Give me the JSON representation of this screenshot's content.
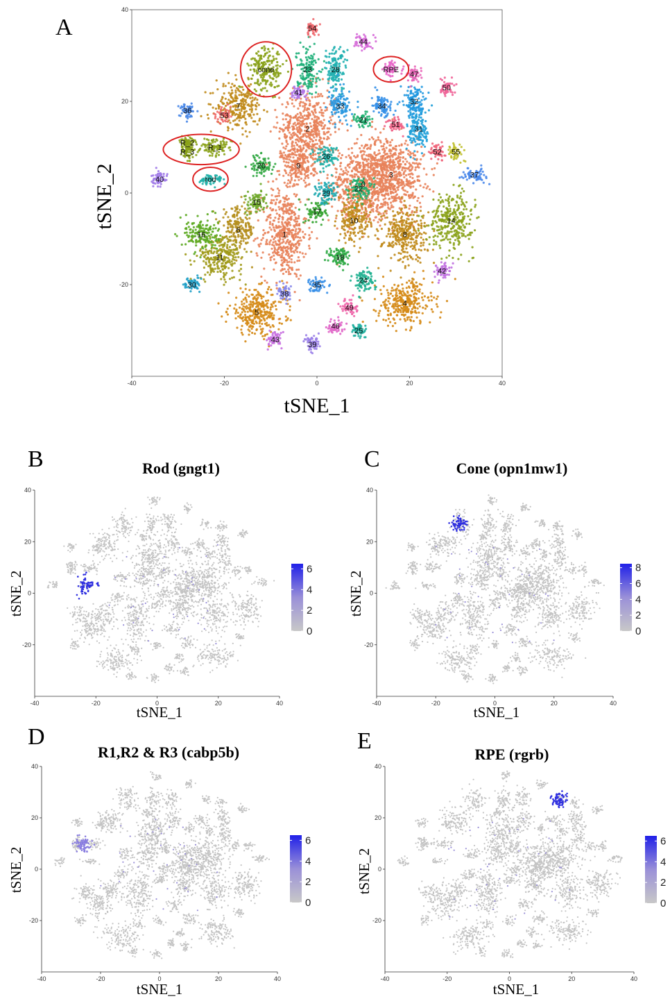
{
  "chart_data": [
    {
      "panel": "A",
      "type": "scatter",
      "title": "",
      "xlabel": "tSNE_1",
      "ylabel": "tSNE_2",
      "xlim": [
        -40,
        40
      ],
      "ylim": [
        -40,
        40
      ],
      "x_ticks": [
        "-40",
        "-20",
        "0",
        "20",
        "40"
      ],
      "y_ticks": [
        "40",
        "20",
        "0",
        "-20"
      ],
      "grid": false,
      "clusters": [
        {
          "name": "0",
          "x": 10,
          "y": 2,
          "color": "#e8825a"
        },
        {
          "name": "1",
          "x": -7,
          "y": -9,
          "color": "#e8825a"
        },
        {
          "name": "2",
          "x": -2,
          "y": 14,
          "color": "#e8825a"
        },
        {
          "name": "3",
          "x": 16,
          "y": 4,
          "color": "#e8825a"
        },
        {
          "name": "4",
          "x": 19,
          "y": -24,
          "color": "#d58a16"
        },
        {
          "name": "5",
          "x": -13,
          "y": -26,
          "color": "#d58a16"
        },
        {
          "name": "6",
          "x": -17,
          "y": -8,
          "color": "#b58f1e"
        },
        {
          "name": "7",
          "x": -17,
          "y": 19,
          "color": "#c08a1a"
        },
        {
          "name": "8",
          "x": 19,
          "y": -9,
          "color": "#c08a1a"
        },
        {
          "name": "9",
          "x": -4,
          "y": 6,
          "color": "#e8825a"
        },
        {
          "name": "10",
          "x": 8,
          "y": -6,
          "color": "#c08a1a"
        },
        {
          "name": "11",
          "x": -21,
          "y": -14,
          "color": "#a09a1a"
        },
        {
          "name": "14",
          "x": 29,
          "y": -6,
          "color": "#8aa21a"
        },
        {
          "name": "15",
          "x": -13,
          "y": -2,
          "color": "#6fa82a"
        },
        {
          "name": "16",
          "x": -25,
          "y": -9,
          "color": "#5daa22"
        },
        {
          "name": "17",
          "x": 0,
          "y": -4,
          "color": "#3aa535"
        },
        {
          "name": "18",
          "x": 5,
          "y": -14,
          "color": "#2faa45"
        },
        {
          "name": "20",
          "x": -12,
          "y": 6,
          "color": "#33a845"
        },
        {
          "name": "21",
          "x": 10,
          "y": 16,
          "color": "#1fb070"
        },
        {
          "name": "22",
          "x": 9,
          "y": 1,
          "color": "#1fb070"
        },
        {
          "name": "23",
          "x": -2,
          "y": 27,
          "color": "#20b07a"
        },
        {
          "name": "24",
          "x": 10,
          "y": -19,
          "color": "#1fb090"
        },
        {
          "name": "25",
          "x": 9,
          "y": -30,
          "color": "#20b0a0"
        },
        {
          "name": "26",
          "x": 2,
          "y": 8,
          "color": "#20b0a8"
        },
        {
          "name": "28",
          "x": 4,
          "y": 27,
          "color": "#20b0b0"
        },
        {
          "name": "29",
          "x": 2,
          "y": 0,
          "color": "#20aab0"
        },
        {
          "name": "30",
          "x": -27,
          "y": -20,
          "color": "#20a0c8"
        },
        {
          "name": "31",
          "x": 22,
          "y": 14,
          "color": "#20a0d8"
        },
        {
          "name": "32",
          "x": 21,
          "y": 20,
          "color": "#2098e0"
        },
        {
          "name": "33",
          "x": 5,
          "y": 19,
          "color": "#2a98e0"
        },
        {
          "name": "34",
          "x": 14,
          "y": 19,
          "color": "#3590e8"
        },
        {
          "name": "35",
          "x": 0,
          "y": -20,
          "color": "#3a90e8"
        },
        {
          "name": "36",
          "x": -28,
          "y": 18,
          "color": "#4a88e8"
        },
        {
          "name": "37",
          "x": 34,
          "y": 4,
          "color": "#4a88ea"
        },
        {
          "name": "38",
          "x": -7,
          "y": -22,
          "color": "#8a8aea"
        },
        {
          "name": "39",
          "x": -1,
          "y": -33,
          "color": "#9a80e8"
        },
        {
          "name": "40",
          "x": -34,
          "y": 3,
          "color": "#a07ae8"
        },
        {
          "name": "41",
          "x": -4,
          "y": 22,
          "color": "#b078e8"
        },
        {
          "name": "42",
          "x": 27,
          "y": -17,
          "color": "#c070e0"
        },
        {
          "name": "43",
          "x": -9,
          "y": -32,
          "color": "#c870e0"
        },
        {
          "name": "44",
          "x": 10,
          "y": 33,
          "color": "#d66ad8"
        },
        {
          "name": "46",
          "x": 4,
          "y": -29,
          "color": "#e066c8"
        },
        {
          "name": "47",
          "x": 21,
          "y": 26,
          "color": "#e866b8"
        },
        {
          "name": "49",
          "x": 7,
          "y": -25,
          "color": "#ee64a8"
        },
        {
          "name": "50",
          "x": 28,
          "y": 23,
          "color": "#f06498"
        },
        {
          "name": "51",
          "x": 17,
          "y": 15,
          "color": "#f06488"
        },
        {
          "name": "52",
          "x": 26,
          "y": 9,
          "color": "#f0647a"
        },
        {
          "name": "53",
          "x": -20,
          "y": 17,
          "color": "#f06a6a"
        },
        {
          "name": "54",
          "x": -1,
          "y": 36,
          "color": "#f06a70"
        },
        {
          "name": "55",
          "x": 30,
          "y": 9,
          "color": "#c0c030"
        },
        {
          "name": "cone",
          "x": -11,
          "y": 27,
          "color": "#8aa21a"
        },
        {
          "name": "RPE",
          "x": 16,
          "y": 27,
          "color": "#e866c8"
        },
        {
          "name": "R_1",
          "x": -22,
          "y": 10,
          "color": "#8aa21a"
        },
        {
          "name": "R_2",
          "x": -28,
          "y": 11,
          "color": "#8aa21a"
        },
        {
          "name": "R_3",
          "x": -28,
          "y": 9,
          "color": "#8aa21a"
        },
        {
          "name": "rod",
          "x": -23,
          "y": 3,
          "color": "#20b0a8"
        }
      ],
      "highlighted_circles": [
        "cone",
        "RPE",
        "R_1/R_2/R_3",
        "rod"
      ]
    },
    {
      "panel": "B",
      "type": "scatter",
      "title": "Rod (gngt1)",
      "xlabel": "tSNE_1",
      "ylabel": "tSNE_2",
      "xlim": [
        -40,
        40
      ],
      "ylim": [
        -40,
        40
      ],
      "x_ticks": [
        "-40",
        "-20",
        "0",
        "20",
        "40"
      ],
      "y_ticks": [
        "40",
        "20",
        "0",
        "-20"
      ],
      "legend_ticks": [
        "6",
        "4",
        "2",
        "0"
      ],
      "legend_min": 0,
      "legend_max": 6.5,
      "legend_colors": [
        "#c8c8c8",
        "#2020e8"
      ],
      "highlight": [
        {
          "x": -23,
          "y": 3,
          "value": 6
        }
      ]
    },
    {
      "panel": "C",
      "type": "scatter",
      "title": "Cone (opn1mw1)",
      "xlabel": "tSNE_1",
      "ylabel": "tSNE_2",
      "xlim": [
        -40,
        40
      ],
      "ylim": [
        -40,
        40
      ],
      "x_ticks": [
        "-40",
        "-20",
        "0",
        "20",
        "40"
      ],
      "y_ticks": [
        "40",
        "20",
        "0",
        "-20"
      ],
      "legend_ticks": [
        "8",
        "6",
        "4",
        "2",
        "0"
      ],
      "legend_min": 0,
      "legend_max": 8.5,
      "legend_colors": [
        "#c8c8c8",
        "#2020e8"
      ],
      "highlight": [
        {
          "x": -12,
          "y": 27,
          "value": 8
        }
      ]
    },
    {
      "panel": "D",
      "type": "scatter",
      "title": "R1,R2 & R3 (cabp5b)",
      "xlabel": "tSNE_1",
      "ylabel": "tSNE_2",
      "xlim": [
        -40,
        40
      ],
      "ylim": [
        -40,
        40
      ],
      "x_ticks": [
        "-40",
        "-20",
        "0",
        "20",
        "40"
      ],
      "y_ticks": [
        "40",
        "20",
        "0",
        "-20"
      ],
      "legend_ticks": [
        "6",
        "4",
        "2",
        "0"
      ],
      "legend_min": 0,
      "legend_max": 6.5,
      "legend_colors": [
        "#c8c8c8",
        "#2020e8"
      ],
      "highlight": [
        {
          "x": -26,
          "y": 10,
          "value": 5
        }
      ]
    },
    {
      "panel": "E",
      "type": "scatter",
      "title": "RPE (rgrb)",
      "xlabel": "tSNE_1",
      "ylabel": "tSNE_2",
      "xlim": [
        -40,
        40
      ],
      "ylim": [
        -40,
        40
      ],
      "x_ticks": [
        "-40",
        "-20",
        "0",
        "20",
        "40"
      ],
      "y_ticks": [
        "40",
        "20",
        "0",
        "-20"
      ],
      "legend_ticks": [
        "6",
        "4",
        "2",
        "0"
      ],
      "legend_min": 0,
      "legend_max": 6.5,
      "legend_colors": [
        "#c8c8c8",
        "#2020e8"
      ],
      "highlight": [
        {
          "x": 16,
          "y": 27,
          "value": 6
        }
      ]
    }
  ]
}
